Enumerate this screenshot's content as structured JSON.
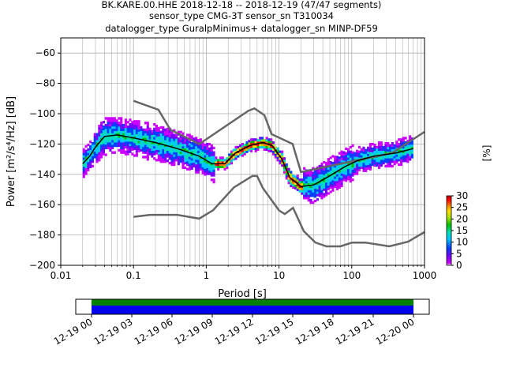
{
  "title_lines": [
    "BK.KARE.00.HHE   2018-12-18 -- 2018-12-19  (47/47 segments)",
    "sensor_type CMG-3T sensor_sn T310034",
    "datalogger_type GuralpMinimus+ datalogger_sn MINP-DF59"
  ],
  "chart_data": {
    "type": "heatmap",
    "xlabel": "Period [s]",
    "ylabel": "Power [m²/s⁴/Hz] [dB]",
    "xscale": "log",
    "xlim": [
      0.01,
      1000
    ],
    "ylim": [
      -200,
      -50
    ],
    "x_ticks": [
      0.01,
      0.1,
      1,
      10,
      100,
      1000
    ],
    "x_tick_labels": [
      "0.01",
      "0.1",
      "1",
      "10",
      "100",
      "1000"
    ],
    "y_ticks": [
      -200,
      -180,
      -160,
      -140,
      -120,
      -100,
      -80,
      -60
    ],
    "y_tick_labels": [
      "−200",
      "−180",
      "−160",
      "−140",
      "−120",
      "−100",
      "−80",
      "−60"
    ],
    "grid": true,
    "colorbar": {
      "label": "[%]",
      "range": [
        0,
        30
      ],
      "ticks": [
        0,
        5,
        10,
        15,
        20,
        25,
        30
      ],
      "tick_labels": [
        "0",
        "5",
        "10",
        "15",
        "20",
        "25",
        "30"
      ]
    },
    "mean_psd": {
      "period": [
        0.02,
        0.025,
        0.03,
        0.04,
        0.06,
        0.1,
        0.2,
        0.4,
        0.8,
        1.2,
        1.8,
        2.5,
        4,
        6,
        8,
        11,
        14,
        20,
        30,
        50,
        80,
        120,
        200,
        400,
        700
      ],
      "power": [
        -133,
        -128,
        -122,
        -115,
        -114,
        -116,
        -119,
        -123,
        -128,
        -133,
        -133,
        -126,
        -121,
        -119,
        -121,
        -130,
        -142,
        -148,
        -147,
        -141,
        -135,
        -131,
        -128,
        -126,
        -123
      ]
    },
    "new_high_noise_model": {
      "period": [
        0.1,
        0.22,
        0.32,
        0.8,
        3.8,
        4.6,
        6.3,
        7.9,
        15.4,
        20,
        354.8,
        1000
      ],
      "power": [
        -91.5,
        -97.4,
        -110.5,
        -120,
        -98,
        -96.5,
        -101,
        -113.5,
        -120,
        -138.5,
        -126,
        -112
      ]
    },
    "new_low_noise_model": {
      "period": [
        0.1,
        0.17,
        0.4,
        0.8,
        1.24,
        2.4,
        4.3,
        5,
        6,
        10,
        12,
        15.6,
        21.9,
        31.6,
        45,
        70,
        101,
        154,
        328,
        600,
        1000
      ],
      "power": [
        -168,
        -166.7,
        -166.7,
        -169.2,
        -163.7,
        -148.6,
        -141.1,
        -141.1,
        -149,
        -163.8,
        -166.2,
        -162.1,
        -177.5,
        -185,
        -187.5,
        -187.5,
        -185,
        -185,
        -187.5,
        -184.4,
        -178
      ]
    },
    "timeline": {
      "tick_labels": [
        "12-19 00",
        "12-19 03",
        "12-19 06",
        "12-19 09",
        "12-19 12",
        "12-19 15",
        "12-19 18",
        "12-19 21",
        "12-20 00"
      ],
      "data_coverage_color": "#0000ee",
      "gap_free_color": "#008000"
    },
    "colormap": [
      "#ffffff",
      "#cc00ff",
      "#7700ff",
      "#0040ff",
      "#00c8ff",
      "#00e0b0",
      "#00c000",
      "#a0e000",
      "#ffe000",
      "#ff8000",
      "#ff0000",
      "#c00000"
    ]
  }
}
